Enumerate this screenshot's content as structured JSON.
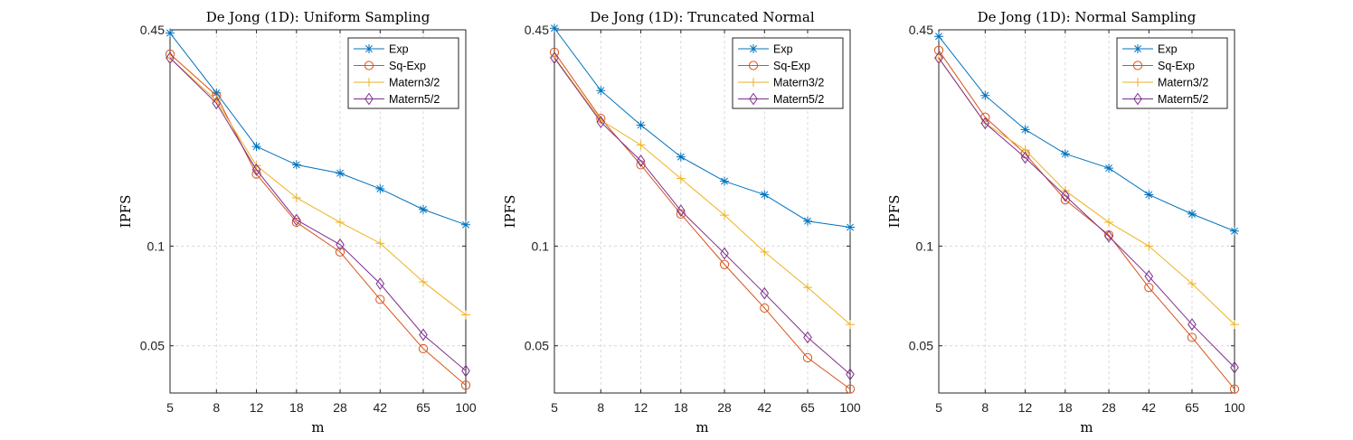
{
  "chart_data": [
    {
      "type": "line",
      "title": "De Jong (1D): Uniform Sampling",
      "xlabel": "m",
      "ylabel": "IPFS",
      "yscale": "log",
      "xscale": "log",
      "categories": [
        "5",
        "8",
        "12",
        "18",
        "28",
        "42",
        "65",
        "100"
      ],
      "x": [
        5,
        8,
        12,
        18,
        28,
        42,
        65,
        100
      ],
      "ylim": [
        0.036,
        0.45
      ],
      "yticks": [
        0.05,
        0.1,
        0.45
      ],
      "ytick_labels": [
        "0.05",
        "0.1",
        "0.45"
      ],
      "grid": true,
      "legend_position": "top-right",
      "series": [
        {
          "name": "Exp",
          "color": "#0072BD",
          "marker": "star",
          "values": [
            0.44,
            0.29,
            0.2,
            0.176,
            0.166,
            0.149,
            0.129,
            0.116
          ]
        },
        {
          "name": "Sq-Exp",
          "color": "#D95319",
          "marker": "circle",
          "values": [
            0.38,
            0.285,
            0.165,
            0.118,
            0.096,
            0.069,
            0.049,
            0.038
          ]
        },
        {
          "name": "Matern3/2",
          "color": "#EDB120",
          "marker": "plus",
          "values": [
            0.37,
            0.275,
            0.175,
            0.14,
            0.118,
            0.102,
            0.078,
            0.062
          ]
        },
        {
          "name": "Matern5/2",
          "color": "#7E2F8E",
          "marker": "diamond",
          "values": [
            0.37,
            0.27,
            0.17,
            0.12,
            0.101,
            0.077,
            0.054,
            0.042
          ]
        }
      ]
    },
    {
      "type": "line",
      "title": "De Jong (1D): Truncated Normal",
      "xlabel": "m",
      "ylabel": "IPFS",
      "yscale": "log",
      "xscale": "log",
      "categories": [
        "5",
        "8",
        "12",
        "18",
        "28",
        "42",
        "65",
        "100"
      ],
      "x": [
        5,
        8,
        12,
        18,
        28,
        42,
        65,
        100
      ],
      "ylim": [
        0.036,
        0.45
      ],
      "yticks": [
        0.05,
        0.1,
        0.45
      ],
      "ytick_labels": [
        "0.05",
        "0.1",
        "0.45"
      ],
      "grid": true,
      "legend_position": "top-right",
      "series": [
        {
          "name": "Exp",
          "color": "#0072BD",
          "marker": "star",
          "values": [
            0.455,
            0.295,
            0.232,
            0.186,
            0.157,
            0.143,
            0.119,
            0.114
          ]
        },
        {
          "name": "Sq-Exp",
          "color": "#D95319",
          "marker": "circle",
          "values": [
            0.385,
            0.243,
            0.176,
            0.125,
            0.088,
            0.065,
            0.046,
            0.037
          ]
        },
        {
          "name": "Matern3/2",
          "color": "#EDB120",
          "marker": "plus",
          "values": [
            0.372,
            0.24,
            0.202,
            0.16,
            0.124,
            0.096,
            0.075,
            0.058
          ]
        },
        {
          "name": "Matern5/2",
          "color": "#7E2F8E",
          "marker": "diamond",
          "values": [
            0.37,
            0.237,
            0.181,
            0.128,
            0.095,
            0.072,
            0.053,
            0.041
          ]
        }
      ]
    },
    {
      "type": "line",
      "title": "De Jong (1D): Normal Sampling",
      "xlabel": "m",
      "ylabel": "IPFS",
      "yscale": "log",
      "xscale": "log",
      "categories": [
        "5",
        "8",
        "12",
        "18",
        "28",
        "42",
        "65",
        "100"
      ],
      "x": [
        5,
        8,
        12,
        18,
        28,
        42,
        65,
        100
      ],
      "ylim": [
        0.036,
        0.45
      ],
      "yticks": [
        0.05,
        0.1,
        0.45
      ],
      "ytick_labels": [
        "0.05",
        "0.1",
        "0.45"
      ],
      "grid": true,
      "legend_position": "top-right",
      "series": [
        {
          "name": "Exp",
          "color": "#0072BD",
          "marker": "star",
          "values": [
            0.43,
            0.285,
            0.225,
            0.19,
            0.172,
            0.143,
            0.125,
            0.111
          ]
        },
        {
          "name": "Sq-Exp",
          "color": "#D95319",
          "marker": "circle",
          "values": [
            0.39,
            0.245,
            0.19,
            0.138,
            0.108,
            0.075,
            0.053,
            0.037
          ]
        },
        {
          "name": "Matern3/2",
          "color": "#EDB120",
          "marker": "plus",
          "values": [
            0.37,
            0.235,
            0.195,
            0.147,
            0.118,
            0.1,
            0.077,
            0.058
          ]
        },
        {
          "name": "Matern5/2",
          "color": "#7E2F8E",
          "marker": "diamond",
          "values": [
            0.37,
            0.235,
            0.185,
            0.142,
            0.107,
            0.081,
            0.058,
            0.043
          ]
        }
      ]
    }
  ]
}
